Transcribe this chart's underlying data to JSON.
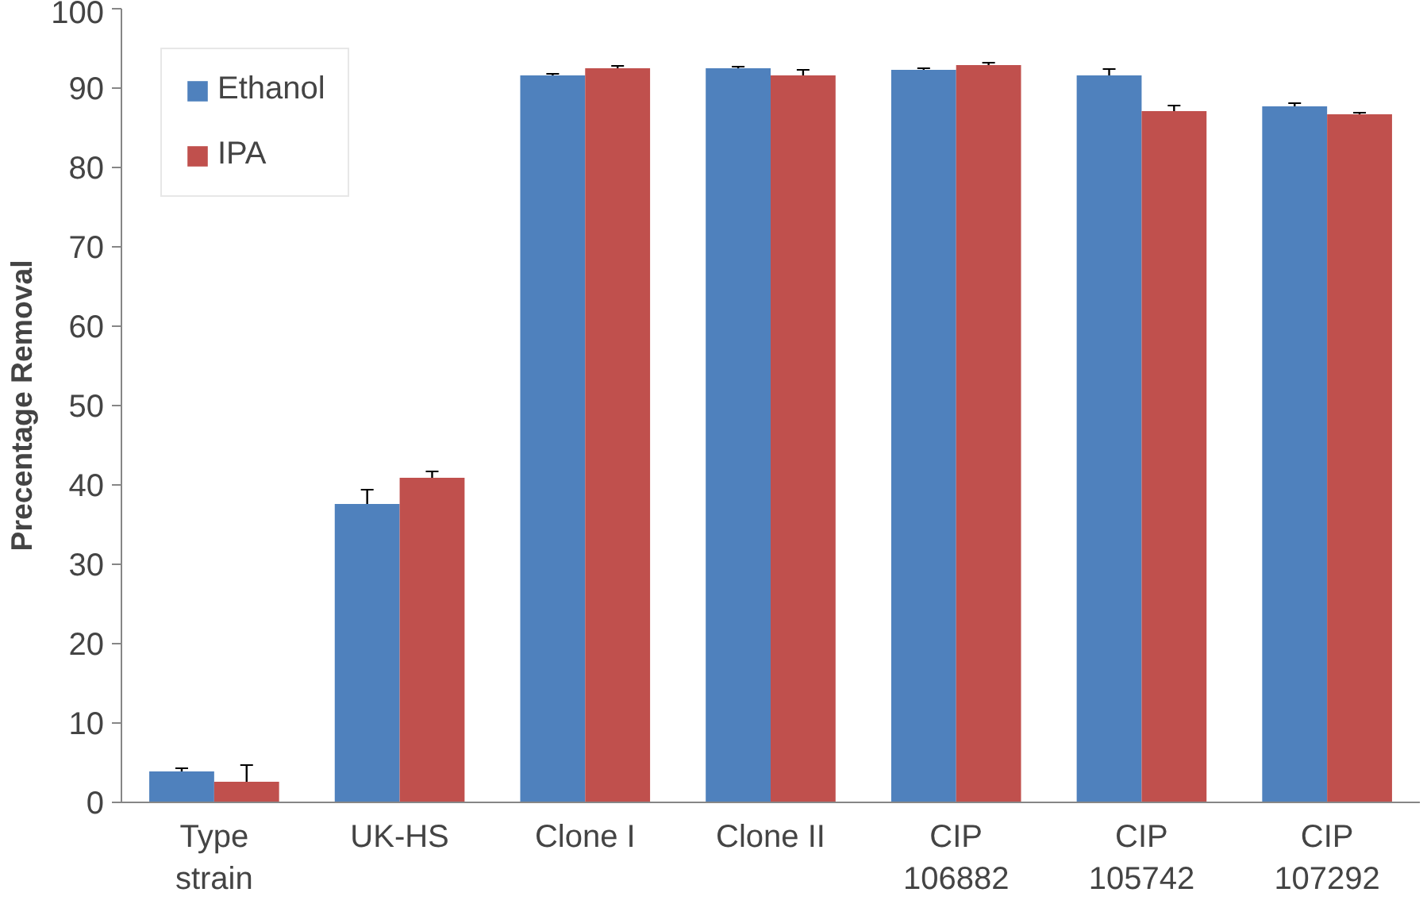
{
  "chart_data": {
    "type": "bar",
    "ylabel": "Precentage Removal",
    "categories": [
      "Type\nstrain",
      "UK-HS",
      "Clone I",
      "Clone II",
      "CIP\n106882",
      "CIP\n105742",
      "CIP\n107292"
    ],
    "series": [
      {
        "name": "Ethanol",
        "color": "#4f81bd",
        "values": [
          3.9,
          37.6,
          91.6,
          92.5,
          92.3,
          91.6,
          87.7
        ],
        "errors": [
          0.4,
          1.8,
          0.2,
          0.2,
          0.2,
          0.8,
          0.4
        ]
      },
      {
        "name": "IPA",
        "color": "#c0504d",
        "values": [
          2.6,
          40.9,
          92.5,
          91.6,
          92.9,
          87.1,
          86.7
        ],
        "errors": [
          2.1,
          0.8,
          0.3,
          0.7,
          0.3,
          0.7,
          0.2
        ]
      }
    ],
    "ylim": [
      0,
      100
    ],
    "yticks": [
      0,
      10,
      20,
      30,
      40,
      50,
      60,
      70,
      80,
      90,
      100
    ],
    "grid": false,
    "legend": "top left"
  }
}
